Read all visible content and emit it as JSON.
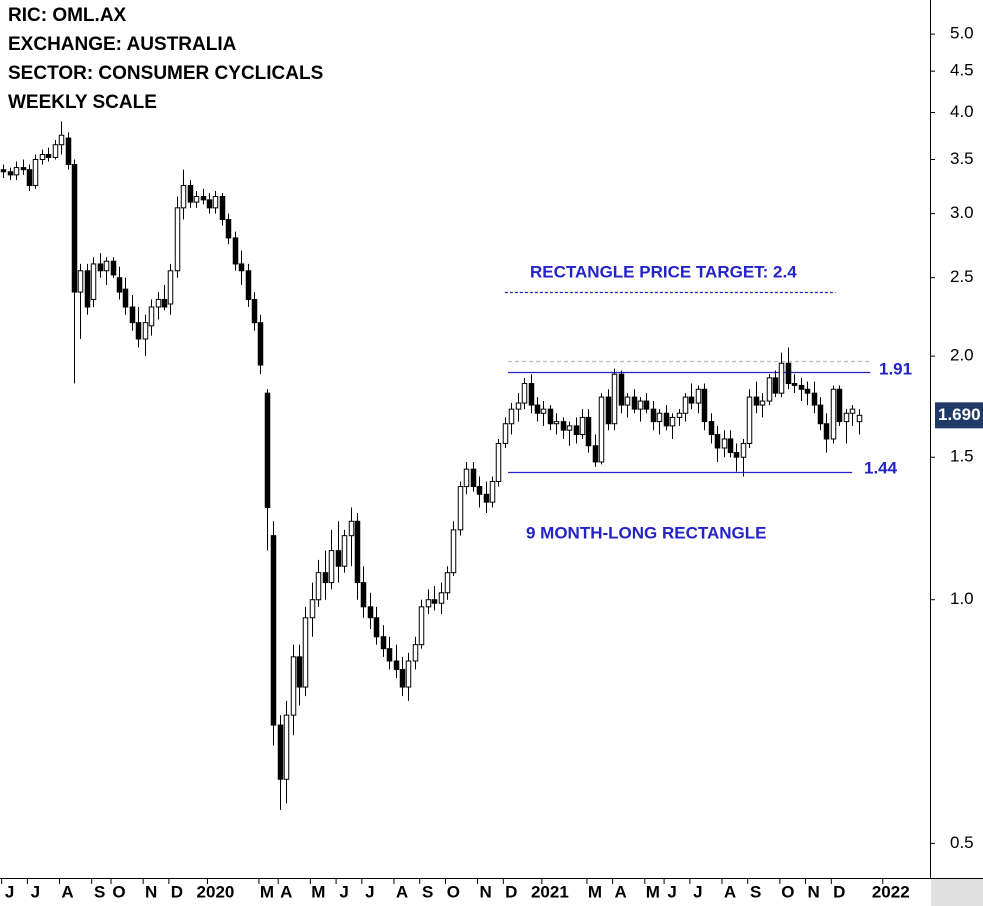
{
  "chart_data": {
    "type": "candlestick",
    "header": [
      "RIC: OML.AX",
      "EXCHANGE: AUSTRALIA",
      "SECTOR: CONSUMER CYCLICALS",
      "WEEKLY SCALE"
    ],
    "log_scale": true,
    "ylim": [
      0.453,
      5.51
    ],
    "yticks": [
      0.5,
      {
        "value": 1,
        "label": "1.0"
      },
      1.5,
      {
        "value": 2,
        "label": "2.0"
      },
      2.5,
      {
        "value": 3,
        "label": "3.0"
      },
      3.5,
      {
        "value": 4,
        "label": "4.0"
      },
      4.5,
      {
        "value": 5,
        "label": "5.0"
      }
    ],
    "xlim": [
      -0.5,
      144.1
    ],
    "xticks": [
      {
        "value": 1,
        "label": "J"
      },
      {
        "value": 5,
        "label": "J"
      },
      {
        "value": 10,
        "label": "A"
      },
      {
        "value": 15,
        "label": "S"
      },
      {
        "value": 18,
        "label": "O"
      },
      {
        "value": 23,
        "label": "N"
      },
      {
        "value": 27,
        "label": "D"
      },
      {
        "value": 33,
        "label": "2020"
      },
      {
        "value": 41,
        "label": "M"
      },
      {
        "value": 44,
        "label": "A"
      },
      {
        "value": 49,
        "label": "M"
      },
      {
        "value": 53,
        "label": "J"
      },
      {
        "value": 57,
        "label": "J"
      },
      {
        "value": 62,
        "label": "A"
      },
      {
        "value": 66,
        "label": "S"
      },
      {
        "value": 70,
        "label": "O"
      },
      {
        "value": 75,
        "label": "N"
      },
      {
        "value": 79,
        "label": "D"
      },
      {
        "value": 85,
        "label": "2021"
      },
      {
        "value": 92,
        "label": "M"
      },
      {
        "value": 96,
        "label": "A"
      },
      {
        "value": 101,
        "label": "M"
      },
      {
        "value": 104,
        "label": "J"
      },
      {
        "value": 108,
        "label": "J"
      },
      {
        "value": 113,
        "label": "A"
      },
      {
        "value": 117,
        "label": "S"
      },
      {
        "value": 122,
        "label": "O"
      },
      {
        "value": 126,
        "label": "N"
      },
      {
        "value": 130,
        "label": "D"
      },
      {
        "value": 138,
        "label": "2022"
      }
    ],
    "up_color": "#ffffff",
    "down_color": "#000000",
    "open": [
      3.4,
      3.38,
      3.35,
      3.42,
      3.4,
      3.25,
      3.5,
      3.55,
      3.52,
      3.65,
      3.72,
      3.45,
      2.4,
      2.55,
      2.35,
      2.6,
      2.55,
      2.62,
      2.5,
      2.42,
      2.3,
      2.2,
      2.1,
      2.18,
      2.3,
      2.35,
      2.32,
      2.55,
      3.05,
      3.25,
      3.1,
      3.15,
      3.12,
      3.05,
      3.15,
      2.95,
      2.8,
      2.6,
      2.55,
      2.35,
      2.2,
      1.8,
      1.2,
      0.7,
      0.6,
      0.72,
      0.85,
      0.78,
      0.95,
      1.0,
      1.08,
      1.05,
      1.15,
      1.1,
      1.2,
      1.25,
      1.05,
      0.98,
      0.95,
      0.9,
      0.87,
      0.84,
      0.82,
      0.78,
      0.84,
      0.88,
      0.98,
      1.0,
      0.99,
      1.02,
      1.08,
      1.22,
      1.38,
      1.45,
      1.38,
      1.35,
      1.32,
      1.4,
      1.56,
      1.65,
      1.72,
      1.75,
      1.85,
      1.74,
      1.7,
      1.72,
      1.65,
      1.66,
      1.62,
      1.64,
      1.6,
      1.68,
      1.55,
      1.48,
      1.78,
      1.65,
      1.9,
      1.74,
      1.78,
      1.72,
      1.76,
      1.72,
      1.66,
      1.7,
      1.64,
      1.68,
      1.7,
      1.78,
      1.75,
      1.82,
      1.66,
      1.6,
      1.54,
      1.58,
      1.52,
      1.5,
      1.56,
      1.78,
      1.74,
      1.76,
      1.88,
      1.8,
      1.96,
      1.85,
      1.84,
      1.82,
      1.8,
      1.74,
      1.65,
      1.58,
      1.82,
      1.66,
      1.7,
      1.66
    ],
    "high": [
      3.45,
      3.42,
      3.48,
      3.5,
      3.45,
      3.55,
      3.6,
      3.62,
      3.7,
      3.9,
      3.78,
      3.5,
      2.6,
      2.6,
      2.65,
      2.68,
      2.65,
      2.65,
      2.58,
      2.5,
      2.38,
      2.3,
      2.25,
      2.35,
      2.4,
      2.45,
      2.6,
      3.15,
      3.4,
      3.3,
      3.2,
      3.22,
      3.18,
      3.2,
      3.18,
      3.0,
      2.85,
      2.7,
      2.6,
      2.4,
      2.25,
      1.82,
      1.25,
      0.72,
      0.75,
      0.88,
      0.88,
      0.98,
      1.05,
      1.12,
      1.15,
      1.22,
      1.25,
      1.22,
      1.3,
      1.28,
      1.1,
      1.02,
      0.98,
      0.93,
      0.9,
      0.88,
      0.85,
      0.86,
      0.9,
      1.0,
      1.03,
      1.04,
      1.05,
      1.1,
      1.25,
      1.4,
      1.48,
      1.48,
      1.42,
      1.4,
      1.42,
      1.58,
      1.68,
      1.75,
      1.8,
      1.88,
      1.9,
      1.78,
      1.76,
      1.74,
      1.7,
      1.68,
      1.66,
      1.68,
      1.72,
      1.72,
      1.6,
      1.8,
      1.82,
      1.93,
      1.92,
      1.8,
      1.82,
      1.78,
      1.8,
      1.76,
      1.72,
      1.74,
      1.7,
      1.72,
      1.8,
      1.85,
      1.84,
      1.85,
      1.7,
      1.64,
      1.62,
      1.62,
      1.56,
      1.58,
      1.82,
      1.86,
      1.8,
      1.9,
      1.92,
      2.02,
      2.05,
      1.9,
      1.88,
      1.86,
      1.86,
      1.78,
      1.7,
      1.84,
      1.84,
      1.72,
      1.74,
      1.72
    ],
    "low": [
      3.32,
      3.3,
      3.3,
      3.35,
      3.2,
      3.22,
      3.45,
      3.48,
      3.5,
      3.55,
      3.4,
      1.85,
      2.1,
      2.25,
      2.3,
      2.5,
      2.45,
      2.5,
      2.35,
      2.25,
      2.15,
      2.05,
      2.0,
      2.12,
      2.22,
      2.28,
      2.25,
      2.5,
      2.95,
      3.05,
      3.05,
      3.08,
      3.0,
      3.0,
      2.9,
      2.75,
      2.55,
      2.45,
      2.3,
      2.15,
      1.9,
      1.15,
      0.66,
      0.55,
      0.56,
      0.68,
      0.74,
      0.76,
      0.9,
      0.98,
      1.0,
      1.03,
      1.05,
      1.08,
      1.1,
      1.0,
      0.95,
      0.92,
      0.88,
      0.85,
      0.82,
      0.8,
      0.76,
      0.75,
      0.82,
      0.87,
      0.96,
      0.97,
      0.96,
      1.0,
      1.07,
      1.2,
      1.35,
      1.36,
      1.3,
      1.28,
      1.3,
      1.38,
      1.54,
      1.6,
      1.66,
      1.72,
      1.7,
      1.66,
      1.64,
      1.62,
      1.6,
      1.58,
      1.55,
      1.56,
      1.58,
      1.52,
      1.46,
      1.47,
      1.62,
      1.62,
      1.7,
      1.68,
      1.7,
      1.66,
      1.7,
      1.62,
      1.6,
      1.62,
      1.58,
      1.64,
      1.66,
      1.72,
      1.7,
      1.62,
      1.56,
      1.48,
      1.5,
      1.5,
      1.44,
      1.42,
      1.54,
      1.7,
      1.68,
      1.74,
      1.78,
      1.78,
      1.82,
      1.8,
      1.76,
      1.74,
      1.7,
      1.62,
      1.52,
      1.56,
      1.64,
      1.56,
      1.64,
      1.6
    ],
    "close": [
      3.38,
      3.35,
      3.42,
      3.4,
      3.25,
      3.5,
      3.55,
      3.52,
      3.65,
      3.75,
      3.45,
      2.4,
      2.55,
      2.3,
      2.6,
      2.55,
      2.62,
      2.52,
      2.4,
      2.3,
      2.2,
      2.1,
      2.2,
      2.3,
      2.35,
      2.3,
      2.55,
      3.05,
      3.25,
      3.1,
      3.15,
      3.12,
      3.05,
      3.15,
      2.95,
      2.8,
      2.6,
      2.55,
      2.35,
      2.2,
      1.95,
      1.3,
      0.7,
      0.6,
      0.72,
      0.85,
      0.78,
      0.95,
      1.0,
      1.08,
      1.05,
      1.15,
      1.1,
      1.2,
      1.25,
      1.05,
      0.98,
      0.95,
      0.9,
      0.87,
      0.84,
      0.82,
      0.78,
      0.84,
      0.88,
      0.98,
      1.0,
      0.99,
      1.02,
      1.08,
      1.22,
      1.38,
      1.45,
      1.38,
      1.35,
      1.32,
      1.4,
      1.56,
      1.65,
      1.72,
      1.75,
      1.85,
      1.74,
      1.7,
      1.72,
      1.65,
      1.66,
      1.62,
      1.64,
      1.6,
      1.68,
      1.55,
      1.48,
      1.78,
      1.65,
      1.9,
      1.74,
      1.78,
      1.72,
      1.76,
      1.72,
      1.66,
      1.7,
      1.64,
      1.68,
      1.7,
      1.78,
      1.75,
      1.82,
      1.66,
      1.6,
      1.54,
      1.58,
      1.52,
      1.5,
      1.56,
      1.78,
      1.74,
      1.76,
      1.88,
      1.8,
      1.96,
      1.85,
      1.84,
      1.82,
      1.8,
      1.74,
      1.65,
      1.58,
      1.82,
      1.66,
      1.7,
      1.72,
      1.69
    ],
    "last_price": {
      "value": 1.69,
      "label": "1.690"
    },
    "last_price_color": "#1f3a66",
    "hlines": [
      {
        "value": 2.4,
        "from": 78,
        "to": 129.4,
        "style": "dotted",
        "color": "#2323c8"
      },
      {
        "value": 1.97,
        "from": 78.5,
        "to": 134.8,
        "style": "dashed",
        "color": "#bbbbbb"
      },
      {
        "value": 1.91,
        "from": 78.5,
        "to": 134.8,
        "style": "solid",
        "color": "#2323c8"
      },
      {
        "value": 1.44,
        "from": 78.5,
        "to": 132,
        "style": "solid",
        "color": "#2323c8"
      }
    ],
    "annotations": [
      "RECTANGLE PRICE TARGET: 2.4",
      "1.91",
      "1.44",
      "9 MONTH-LONG RECTANGLE"
    ]
  }
}
